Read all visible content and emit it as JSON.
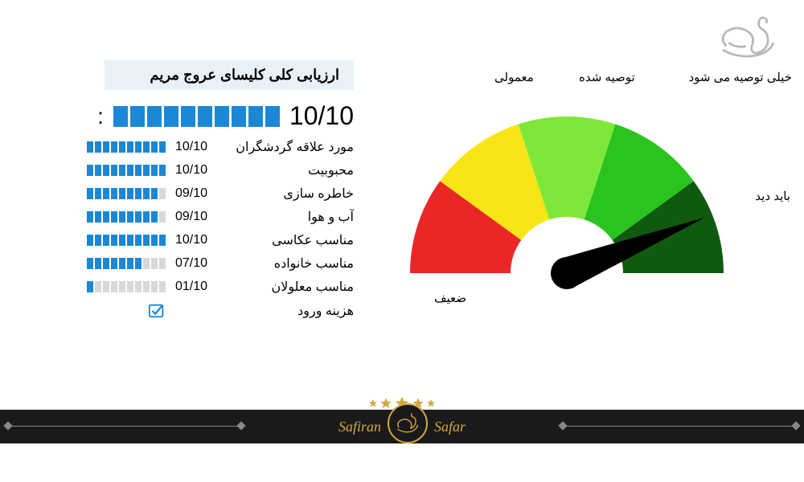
{
  "logo": {
    "color": "#b8b8b8"
  },
  "title": "ارزیابی کلی کلیسای عروج مریم",
  "overall": {
    "score": "10/10",
    "filled": 10,
    "total": 10,
    "bar_color": "#1a88d6"
  },
  "ratings": [
    {
      "label": "مورد علاقه گردشگران",
      "score": "10/10",
      "filled": 10,
      "total": 10
    },
    {
      "label": "محبوبیت",
      "score": "10/10",
      "filled": 10,
      "total": 10
    },
    {
      "label": "خاطره سازی",
      "score": "09/10",
      "filled": 9,
      "total": 10
    },
    {
      "label": "آب و هوا",
      "score": "09/10",
      "filled": 9,
      "total": 10
    },
    {
      "label": "مناسب عکاسی",
      "score": "10/10",
      "filled": 10,
      "total": 10
    },
    {
      "label": "مناسب خانواده",
      "score": "07/10",
      "filled": 7,
      "total": 10
    },
    {
      "label": "مناسب معلولان",
      "score": "01/10",
      "filled": 1,
      "total": 10
    }
  ],
  "check_row": {
    "label": "هزینه ورود",
    "checked": true
  },
  "gauge": {
    "segments": [
      {
        "color": "#ea2727",
        "start": 180,
        "end": 144
      },
      {
        "color": "#f8e517",
        "start": 144,
        "end": 108
      },
      {
        "color": "#7ee83a",
        "start": 108,
        "end": 72
      },
      {
        "color": "#2bc41f",
        "start": 72,
        "end": 36
      },
      {
        "color": "#0f5a0f",
        "start": 36,
        "end": 0
      }
    ],
    "needle_angle": 22,
    "needle_color": "#000000",
    "labels": {
      "top1": "معمولی",
      "top2": "توصیه شده",
      "top3": "خیلی توصیه می شود",
      "right1": "باید دید",
      "bot1": "ضعیف"
    }
  },
  "footer": {
    "left_text": "Safiran",
    "right_text": "Safar",
    "stars": 5,
    "accent": "#d4a83f",
    "bg": "#1a1a1a"
  },
  "colors": {
    "bar_filled": "#1a88d6",
    "bar_empty": "#d8d8d8",
    "title_bg": "#e8f1f7",
    "text": "#000000"
  }
}
